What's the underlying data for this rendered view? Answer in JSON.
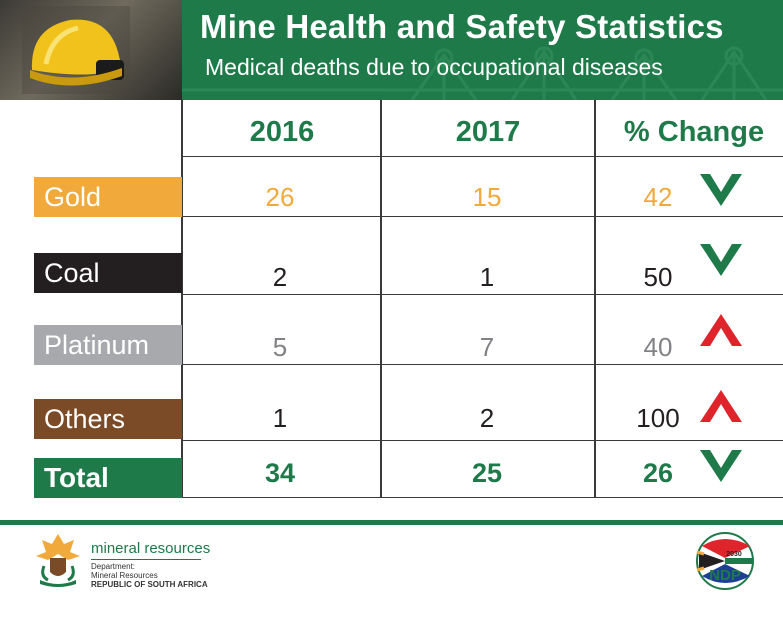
{
  "header": {
    "title": "Mine Health and Safety Statistics",
    "subtitle": "Medical deaths due to occupational diseases"
  },
  "columns": [
    "2016",
    "2017",
    "% Change"
  ],
  "rows": [
    {
      "label": "Gold",
      "v2016": "26",
      "v2017": "15",
      "change": "42",
      "direction": "down",
      "label_bg": "#f2a93b",
      "label_fg": "#ffffff",
      "value_color": "#f2a93b"
    },
    {
      "label": "Coal",
      "v2016": "2",
      "v2017": "1",
      "change": "50",
      "direction": "down",
      "label_bg": "#231f20",
      "label_fg": "#ffffff",
      "value_color": "#231f20"
    },
    {
      "label": "Platinum",
      "v2016": "5",
      "v2017": "7",
      "change": "40",
      "direction": "up",
      "label_bg": "#a7a9ac",
      "label_fg": "#ffffff",
      "value_color": "#808285"
    },
    {
      "label": "Others",
      "v2016": "1",
      "v2017": "2",
      "change": "100",
      "direction": "up",
      "label_bg": "#7b4a26",
      "label_fg": "#ffffff",
      "value_color": "#231f20"
    }
  ],
  "total": {
    "label": "Total",
    "v2016": "34",
    "v2017": "25",
    "change": "26",
    "direction": "down",
    "label_bg": "#1f7a4a",
    "label_fg": "#ffffff",
    "value_color": "#1f7a4a"
  },
  "footer": {
    "dept_name": "mineral resources",
    "dept_line1": "Department:",
    "dept_line2": "Mineral Resources",
    "dept_line3": "REPUBLIC OF SOUTH AFRICA",
    "ndp_label": "NDP",
    "ndp_year": "2030"
  },
  "colors": {
    "green": "#1f7a4a",
    "down_arrow": "#1f7a4a",
    "up_arrow": "#e0242b"
  }
}
